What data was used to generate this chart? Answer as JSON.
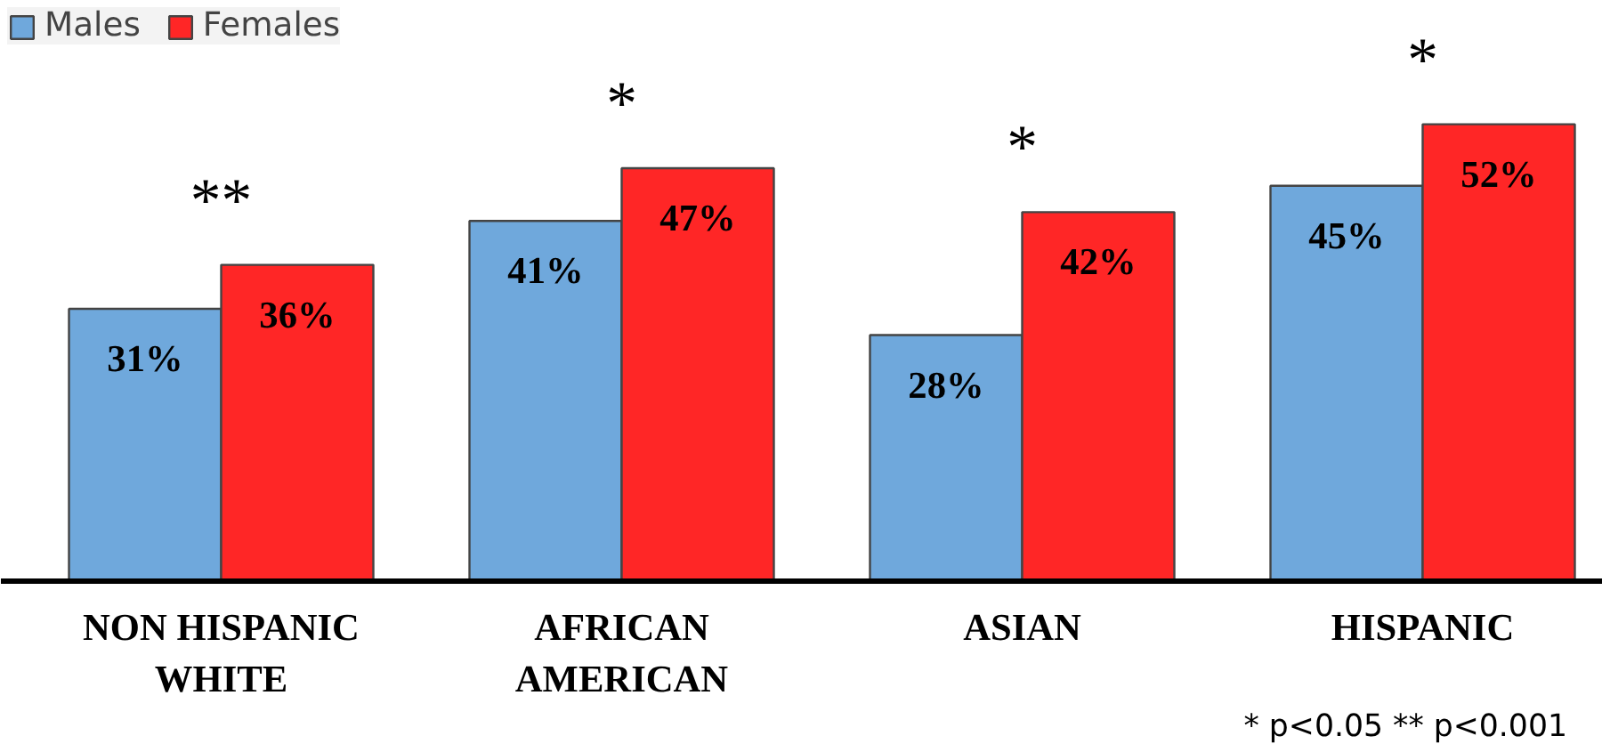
{
  "chart_data": {
    "type": "bar",
    "categories": [
      "NON HISPANIC\nWHITE",
      "AFRICAN\nAMERICAN",
      "ASIAN",
      "HISPANIC"
    ],
    "series": [
      {
        "name": "Males",
        "color": "#6fa8dc",
        "values": [
          31,
          41,
          28,
          45
        ],
        "value_labels": [
          "31%",
          "41%",
          "28%",
          "45%"
        ]
      },
      {
        "name": "Females",
        "color": "#ff2626",
        "values": [
          36,
          47,
          42,
          52
        ],
        "value_labels": [
          "36%",
          "47%",
          "42%",
          "52%"
        ]
      }
    ],
    "tick_labels": "x",
    "legend": "top left",
    "annotations": [
      "**",
      "*",
      "*",
      "*",
      "* p<0.05 ** p<0.001"
    ]
  }
}
